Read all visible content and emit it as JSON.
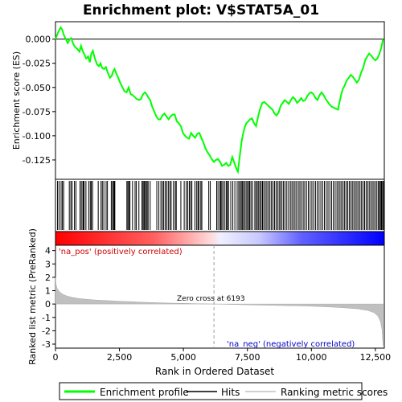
{
  "chart_data": [
    {
      "id": "es-panel",
      "type": "line",
      "title": "Enrichment plot: V$STAT5A_01",
      "ylabel": "Enrichment score (ES)",
      "ylim": [
        -0.145,
        0.018
      ],
      "xlim": [
        0,
        12850
      ],
      "yticks": [
        0.0,
        -0.025,
        -0.05,
        -0.075,
        -0.1,
        -0.125
      ],
      "ytick_labels": [
        "0.000",
        "-0.025",
        "-0.050",
        "-0.075",
        "-0.100",
        "-0.125"
      ],
      "series": [
        {
          "name": "Enrichment profile",
          "color": "#00ff00",
          "points": [
            [
              0,
              0.0
            ],
            [
              60,
              0.004
            ],
            [
              120,
              0.008
            ],
            [
              200,
              0.012
            ],
            [
              260,
              0.01
            ],
            [
              330,
              0.004
            ],
            [
              420,
              -0.001
            ],
            [
              480,
              -0.004
            ],
            [
              560,
              0.0
            ],
            [
              620,
              0.001
            ],
            [
              680,
              -0.004
            ],
            [
              760,
              -0.008
            ],
            [
              850,
              -0.01
            ],
            [
              940,
              -0.013
            ],
            [
              1000,
              -0.007
            ],
            [
              1060,
              -0.012
            ],
            [
              1130,
              -0.016
            ],
            [
              1200,
              -0.02
            ],
            [
              1280,
              -0.018
            ],
            [
              1340,
              -0.024
            ],
            [
              1400,
              -0.015
            ],
            [
              1460,
              -0.012
            ],
            [
              1540,
              -0.02
            ],
            [
              1620,
              -0.026
            ],
            [
              1700,
              -0.028
            ],
            [
              1760,
              -0.025
            ],
            [
              1830,
              -0.03
            ],
            [
              1900,
              -0.031
            ],
            [
              1970,
              -0.029
            ],
            [
              2050,
              -0.035
            ],
            [
              2130,
              -0.04
            ],
            [
              2200,
              -0.038
            ],
            [
              2260,
              -0.033
            ],
            [
              2310,
              -0.031
            ],
            [
              2380,
              -0.036
            ],
            [
              2450,
              -0.04
            ],
            [
              2530,
              -0.045
            ],
            [
              2620,
              -0.05
            ],
            [
              2700,
              -0.054
            ],
            [
              2780,
              -0.055
            ],
            [
              2860,
              -0.05
            ],
            [
              2940,
              -0.057
            ],
            [
              3020,
              -0.058
            ],
            [
              3100,
              -0.06
            ],
            [
              3180,
              -0.062
            ],
            [
              3260,
              -0.063
            ],
            [
              3340,
              -0.062
            ],
            [
              3420,
              -0.057
            ],
            [
              3500,
              -0.055
            ],
            [
              3560,
              -0.057
            ],
            [
              3620,
              -0.06
            ],
            [
              3700,
              -0.063
            ],
            [
              3780,
              -0.07
            ],
            [
              3860,
              -0.075
            ],
            [
              3940,
              -0.08
            ],
            [
              4020,
              -0.083
            ],
            [
              4100,
              -0.083
            ],
            [
              4180,
              -0.079
            ],
            [
              4260,
              -0.077
            ],
            [
              4340,
              -0.08
            ],
            [
              4420,
              -0.083
            ],
            [
              4500,
              -0.08
            ],
            [
              4580,
              -0.078
            ],
            [
              4660,
              -0.078
            ],
            [
              4740,
              -0.085
            ],
            [
              4820,
              -0.087
            ],
            [
              4900,
              -0.09
            ],
            [
              4980,
              -0.097
            ],
            [
              5060,
              -0.1
            ],
            [
              5140,
              -0.102
            ],
            [
              5220,
              -0.103
            ],
            [
              5300,
              -0.097
            ],
            [
              5380,
              -0.1
            ],
            [
              5460,
              -0.102
            ],
            [
              5540,
              -0.098
            ],
            [
              5620,
              -0.097
            ],
            [
              5700,
              -0.102
            ],
            [
              5780,
              -0.107
            ],
            [
              5860,
              -0.113
            ],
            [
              5940,
              -0.117
            ],
            [
              6020,
              -0.12
            ],
            [
              6100,
              -0.124
            ],
            [
              6190,
              -0.127
            ],
            [
              6270,
              -0.125
            ],
            [
              6350,
              -0.124
            ],
            [
              6430,
              -0.127
            ],
            [
              6510,
              -0.131
            ],
            [
              6590,
              -0.13
            ],
            [
              6670,
              -0.128
            ],
            [
              6750,
              -0.131
            ],
            [
              6830,
              -0.13
            ],
            [
              6910,
              -0.122
            ],
            [
              6990,
              -0.128
            ],
            [
              7070,
              -0.134
            ],
            [
              7130,
              -0.137
            ],
            [
              7180,
              -0.126
            ],
            [
              7230,
              -0.115
            ],
            [
              7280,
              -0.105
            ],
            [
              7340,
              -0.097
            ],
            [
              7400,
              -0.091
            ],
            [
              7460,
              -0.087
            ],
            [
              7530,
              -0.085
            ],
            [
              7600,
              -0.083
            ],
            [
              7680,
              -0.082
            ],
            [
              7760,
              -0.087
            ],
            [
              7840,
              -0.09
            ],
            [
              7920,
              -0.08
            ],
            [
              8000,
              -0.072
            ],
            [
              8080,
              -0.066
            ],
            [
              8160,
              -0.065
            ],
            [
              8240,
              -0.067
            ],
            [
              8320,
              -0.069
            ],
            [
              8400,
              -0.071
            ],
            [
              8480,
              -0.073
            ],
            [
              8560,
              -0.077
            ],
            [
              8640,
              -0.079
            ],
            [
              8720,
              -0.076
            ],
            [
              8800,
              -0.069
            ],
            [
              8880,
              -0.066
            ],
            [
              8960,
              -0.063
            ],
            [
              9040,
              -0.065
            ],
            [
              9120,
              -0.067
            ],
            [
              9200,
              -0.063
            ],
            [
              9280,
              -0.06
            ],
            [
              9360,
              -0.062
            ],
            [
              9440,
              -0.066
            ],
            [
              9520,
              -0.064
            ],
            [
              9600,
              -0.061
            ],
            [
              9680,
              -0.064
            ],
            [
              9760,
              -0.063
            ],
            [
              9840,
              -0.059
            ],
            [
              9920,
              -0.056
            ],
            [
              10000,
              -0.055
            ],
            [
              10080,
              -0.057
            ],
            [
              10160,
              -0.061
            ],
            [
              10240,
              -0.063
            ],
            [
              10320,
              -0.058
            ],
            [
              10400,
              -0.055
            ],
            [
              10480,
              -0.058
            ],
            [
              10560,
              -0.062
            ],
            [
              10640,
              -0.065
            ],
            [
              10720,
              -0.068
            ],
            [
              10800,
              -0.07
            ],
            [
              10880,
              -0.071
            ],
            [
              10960,
              -0.072
            ],
            [
              11040,
              -0.073
            ],
            [
              11100,
              -0.065
            ],
            [
              11160,
              -0.058
            ],
            [
              11220,
              -0.052
            ],
            [
              11300,
              -0.048
            ],
            [
              11380,
              -0.043
            ],
            [
              11460,
              -0.04
            ],
            [
              11540,
              -0.037
            ],
            [
              11620,
              -0.039
            ],
            [
              11700,
              -0.042
            ],
            [
              11780,
              -0.045
            ],
            [
              11860,
              -0.042
            ],
            [
              11940,
              -0.035
            ],
            [
              12020,
              -0.03
            ],
            [
              12100,
              -0.022
            ],
            [
              12180,
              -0.018
            ],
            [
              12260,
              -0.015
            ],
            [
              12340,
              -0.017
            ],
            [
              12420,
              -0.02
            ],
            [
              12500,
              -0.022
            ],
            [
              12580,
              -0.02
            ],
            [
              12660,
              -0.015
            ],
            [
              12740,
              -0.008
            ],
            [
              12800,
              0.0
            ]
          ]
        }
      ]
    },
    {
      "id": "hits-panel",
      "type": "hits",
      "series_name": "Hits",
      "color": "#000000",
      "hit_ranks": [
        80,
        140,
        220,
        270,
        320,
        540,
        600,
        650,
        740,
        800,
        960,
        1010,
        1070,
        1090,
        1120,
        1190,
        1300,
        1360,
        1400,
        1450,
        1670,
        1780,
        1830,
        1890,
        1980,
        2030,
        2180,
        2230,
        2270,
        2300,
        2320,
        2790,
        2830,
        2870,
        2910,
        3010,
        3110,
        3160,
        3260,
        3380,
        3420,
        3460,
        3490,
        3540,
        3580,
        3620,
        3700,
        3960,
        4040,
        4120,
        4180,
        4230,
        4290,
        4350,
        4410,
        4470,
        4520,
        4610,
        4680,
        4720,
        4900,
        5030,
        5110,
        5170,
        5230,
        5280,
        5330,
        5450,
        5520,
        5570,
        5610,
        5680,
        5720,
        5990,
        6050,
        6300,
        6350,
        6420,
        6460,
        6500,
        6550,
        6620,
        6680,
        6720,
        6760,
        6850,
        6930,
        7010,
        7100,
        7160,
        7210,
        7260,
        7300,
        7340,
        7400,
        7450,
        7500,
        7550,
        7590,
        7640,
        7700,
        7790,
        7840,
        7890,
        7940,
        7990,
        8040,
        8090,
        8140,
        8200,
        8260,
        8320,
        8380,
        8440,
        8500,
        8560,
        8620,
        8680,
        8740,
        8790,
        8850,
        8910,
        8970,
        9040,
        9110,
        9180,
        9240,
        9300,
        9360,
        9420,
        9490,
        9550,
        9610,
        9680,
        9740,
        9810,
        9880,
        9950,
        10020,
        10090,
        10160,
        10230,
        10300,
        10370,
        10440,
        10510,
        10580,
        10650,
        10720,
        10790,
        10860,
        10930,
        11000,
        11060,
        11120,
        11180,
        11240,
        11300,
        11360,
        11420,
        11480,
        11540,
        11600,
        11660,
        11720,
        11780,
        11840,
        11900,
        11960,
        12020,
        12080,
        12140,
        12200,
        12260,
        12320,
        12380,
        12440,
        12500,
        12560,
        12620,
        12660,
        12700,
        12740,
        12780,
        12820
      ]
    },
    {
      "id": "metric-panel",
      "type": "area",
      "ylabel": "Ranked list metric (PreRanked)",
      "xlabel": "Rank in Ordered Dataset",
      "ylim": [
        -3.3,
        4.4
      ],
      "yticks": [
        4,
        3,
        2,
        1,
        0,
        -1,
        -2,
        -3
      ],
      "xticks": [
        0,
        2500,
        5000,
        7500,
        10000,
        12500
      ],
      "xtick_labels": [
        "0",
        "2,500",
        "5,000",
        "7,500",
        "10,000",
        "12,500"
      ],
      "series": [
        {
          "name": "Ranking metric scores",
          "color": "#c0c0c0",
          "points": [
            [
              0,
              2.0
            ],
            [
              20,
              1.5
            ],
            [
              60,
              1.2
            ],
            [
              120,
              1.0
            ],
            [
              200,
              0.85
            ],
            [
              300,
              0.72
            ],
            [
              450,
              0.6
            ],
            [
              650,
              0.5
            ],
            [
              900,
              0.42
            ],
            [
              1200,
              0.36
            ],
            [
              1600,
              0.3
            ],
            [
              2000,
              0.26
            ],
            [
              2500,
              0.21
            ],
            [
              3000,
              0.17
            ],
            [
              3500,
              0.13
            ],
            [
              4000,
              0.1
            ],
            [
              4500,
              0.07
            ],
            [
              5000,
              0.05
            ],
            [
              5600,
              0.02
            ],
            [
              6193,
              0.0
            ],
            [
              6800,
              -0.03
            ],
            [
              7500,
              -0.06
            ],
            [
              8200,
              -0.09
            ],
            [
              9000,
              -0.12
            ],
            [
              9800,
              -0.15
            ],
            [
              10500,
              -0.2
            ],
            [
              11200,
              -0.27
            ],
            [
              11800,
              -0.36
            ],
            [
              12200,
              -0.48
            ],
            [
              12450,
              -0.65
            ],
            [
              12600,
              -0.9
            ],
            [
              12700,
              -1.3
            ],
            [
              12760,
              -1.9
            ],
            [
              12800,
              -3.1
            ],
            [
              12800,
              0.0
            ]
          ]
        }
      ],
      "zero_cross_rank": 6193,
      "annotations": {
        "zero_cross": "Zero cross at 6193",
        "pos_label": "'na_pos' (positively correlated)",
        "neg_label": "'na_neg' (negatively correlated)"
      },
      "colorbar": {
        "pos_color": "#ff0000",
        "neg_color": "#0000ff"
      }
    }
  ],
  "legend": {
    "items": [
      {
        "label": "Enrichment profile",
        "color": "#00ff00"
      },
      {
        "label": "Hits",
        "color": "#000000"
      },
      {
        "label": "Ranking metric scores",
        "color": "#c0c0c0"
      }
    ]
  }
}
